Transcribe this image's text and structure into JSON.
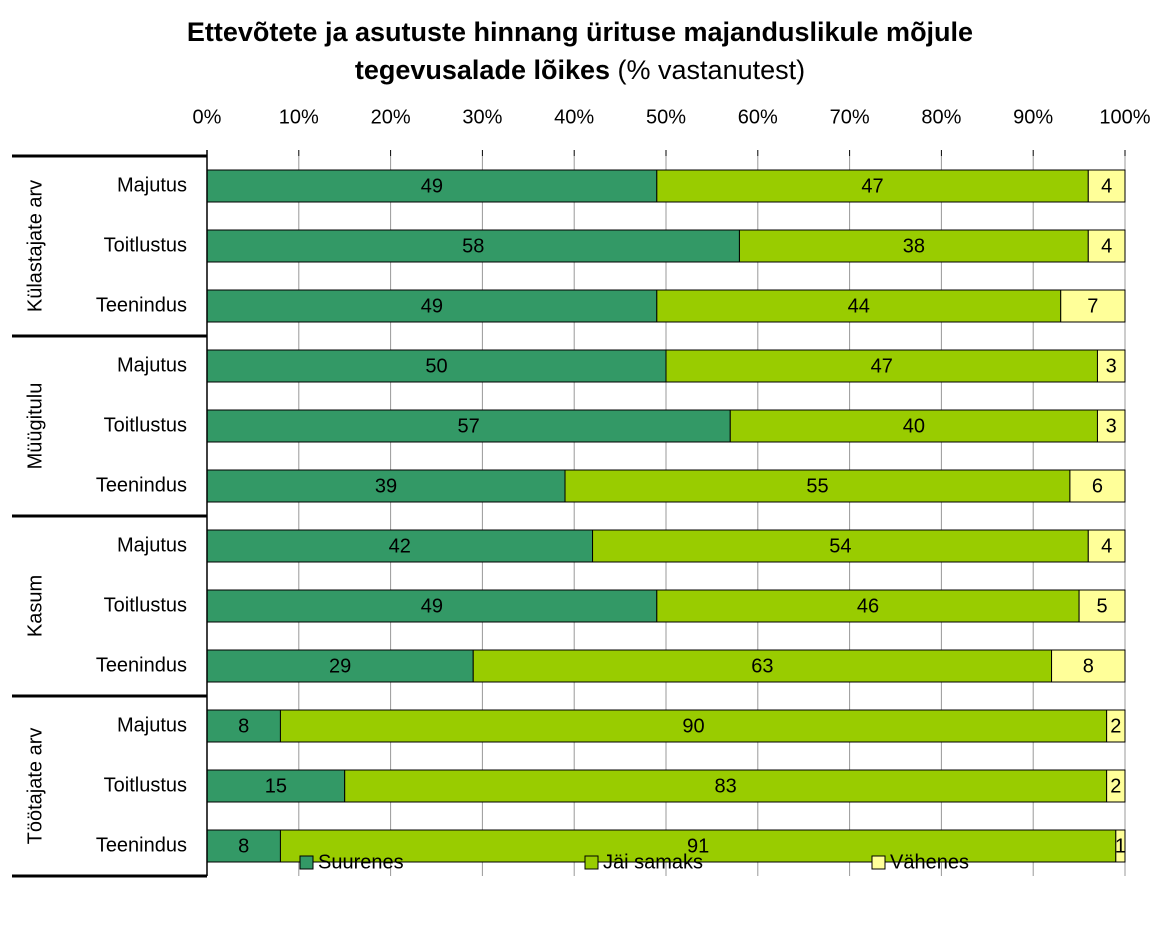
{
  "chart_data": {
    "type": "stacked-bar-horizontal",
    "title": [
      "Ettevõtete ja asutuste hinnang ürituse majanduslikule mõjule",
      "tegevusalade lõikes"
    ],
    "subtitle": "(% vastanutest)",
    "groups": [
      "Külastajate arv",
      "Müügitulu",
      "Kasum",
      "Töötajate arv"
    ],
    "categories": [
      "Majutus",
      "Toitlustus",
      "Teenindus",
      "Majutus",
      "Toitlustus",
      "Teenindus",
      "Majutus",
      "Toitlustus",
      "Teenindus",
      "Majutus",
      "Toitlustus",
      "Teenindus"
    ],
    "series": [
      {
        "name": "Suurenes",
        "color": "#339966",
        "values": [
          49,
          58,
          49,
          50,
          57,
          39,
          42,
          49,
          29,
          8,
          15,
          8
        ]
      },
      {
        "name": "Jäi samaks",
        "color": "#99cc00",
        "values": [
          47,
          38,
          44,
          47,
          40,
          55,
          54,
          46,
          63,
          90,
          83,
          91
        ]
      },
      {
        "name": "Vähenes",
        "color": "#ffff99",
        "values": [
          4,
          4,
          7,
          3,
          3,
          6,
          4,
          5,
          8,
          2,
          2,
          1
        ]
      }
    ],
    "xlim": [
      0,
      100
    ],
    "xticks": [
      {
        "value": 0,
        "label": "0%"
      },
      {
        "value": 10,
        "label": "10%"
      },
      {
        "value": 20,
        "label": "20%"
      },
      {
        "value": 30,
        "label": "30%"
      },
      {
        "value": 40,
        "label": "40%"
      },
      {
        "value": 50,
        "label": "50%"
      },
      {
        "value": 60,
        "label": "60%"
      },
      {
        "value": 70,
        "label": "70%"
      },
      {
        "value": 80,
        "label": "80%"
      },
      {
        "value": 90,
        "label": "90%"
      },
      {
        "value": 100,
        "label": "100%"
      }
    ],
    "grid": true,
    "legend": "bottom"
  }
}
